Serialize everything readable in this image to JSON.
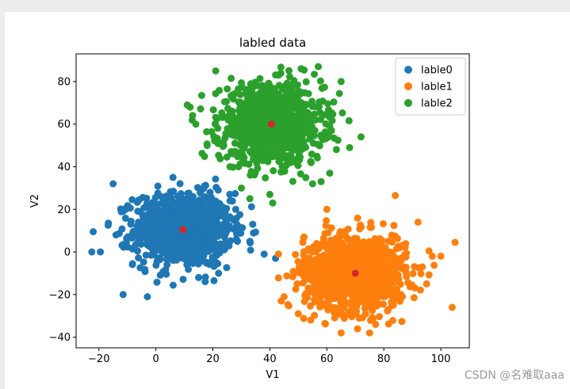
{
  "chart_data": {
    "type": "scatter",
    "title": "labled data",
    "xlabel": "V1",
    "ylabel": "V2",
    "xlim": [
      -28,
      110
    ],
    "ylim": [
      -45,
      93
    ],
    "xticks": [
      -20,
      0,
      20,
      40,
      60,
      80,
      100
    ],
    "yticks": [
      -40,
      -20,
      0,
      20,
      40,
      60,
      80
    ],
    "legend_position": "top-right",
    "grid": false,
    "series": [
      {
        "name": "lable0",
        "color": "#1f77b4",
        "center": [
          9.5,
          10.5
        ],
        "spread": [
          8.5,
          8.5
        ],
        "n": 1000,
        "sample_points": [
          [
            -22,
            9.5
          ],
          [
            -22.5,
            0
          ],
          [
            -19.5,
            0
          ],
          [
            -11.5,
            -20
          ],
          [
            -3,
            -21
          ],
          [
            -15,
            32
          ],
          [
            6,
            35
          ],
          [
            28,
            20
          ],
          [
            34,
            13
          ],
          [
            33,
            5
          ],
          [
            38,
            -1
          ],
          [
            42,
            -3
          ],
          [
            22,
            -10
          ],
          [
            15,
            -12
          ],
          [
            19,
            28
          ],
          [
            26,
            24
          ]
        ]
      },
      {
        "name": "lable1",
        "color": "#ff7f0e",
        "center": [
          70,
          -10
        ],
        "spread": [
          9,
          9
        ],
        "n": 1000,
        "sample_points": [
          [
            84,
            26.5
          ],
          [
            105,
            4.5
          ],
          [
            104,
            -26
          ],
          [
            65,
            -38
          ],
          [
            75,
            -38
          ],
          [
            44,
            -23
          ],
          [
            45,
            -21
          ],
          [
            50,
            -29
          ],
          [
            43,
            -1
          ],
          [
            52,
            7
          ],
          [
            55,
            0
          ],
          [
            60,
            20
          ],
          [
            92,
            14
          ],
          [
            97,
            -2
          ],
          [
            100,
            -2
          ],
          [
            95,
            -15
          ]
        ]
      },
      {
        "name": "lable2",
        "color": "#2ca02c",
        "center": [
          40.5,
          60
        ],
        "spread": [
          9,
          9
        ],
        "n": 1000,
        "sample_points": [
          [
            21,
            85
          ],
          [
            51,
            86
          ],
          [
            57,
            87
          ],
          [
            65,
            80
          ],
          [
            72,
            54
          ],
          [
            68,
            49
          ],
          [
            61,
            37
          ],
          [
            58,
            33
          ],
          [
            55,
            32
          ],
          [
            40,
            27
          ],
          [
            41,
            23
          ],
          [
            29,
            40
          ],
          [
            11,
            69
          ],
          [
            12,
            68
          ],
          [
            14,
            60
          ],
          [
            18,
            50
          ],
          [
            30,
            30
          ],
          [
            33,
            25
          ],
          [
            26,
            40
          ]
        ]
      }
    ],
    "centroids": {
      "color": "#d62728",
      "points": [
        [
          9.5,
          10.5
        ],
        [
          70,
          -10
        ],
        [
          40.5,
          60
        ]
      ]
    }
  },
  "watermark": "CSDN @名难取aaa"
}
